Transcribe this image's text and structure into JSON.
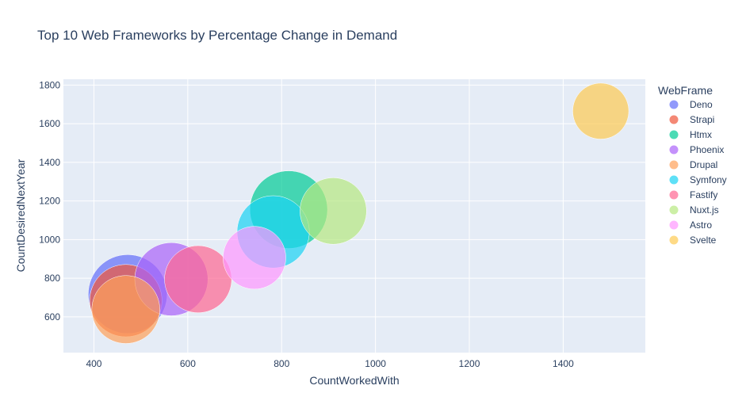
{
  "chart_data": {
    "type": "scatter",
    "title": "Top 10 Web Frameworks by Percentage Change in Demand",
    "xlabel": "CountWorkedWith",
    "ylabel": "CountDesiredNextYear",
    "xlim": [
      335,
      1575
    ],
    "ylim": [
      415,
      1830
    ],
    "x_ticks": [
      400,
      600,
      800,
      1000,
      1200,
      1400
    ],
    "y_ticks": [
      600,
      800,
      1000,
      1200,
      1400,
      1600,
      1800
    ],
    "grid": true,
    "legend_position": "right",
    "legend_title": "WebFrame",
    "plot_background": "#e5ecf6",
    "series": [
      {
        "name": "Deno",
        "x": 472,
        "y": 718,
        "size": 1.55,
        "color": "#636efa"
      },
      {
        "name": "Strapi",
        "x": 468,
        "y": 684,
        "size": 1.3,
        "color": "#EF553B"
      },
      {
        "name": "Htmx",
        "x": 815,
        "y": 1155,
        "size": 1.5,
        "color": "#00cc96"
      },
      {
        "name": "Phoenix",
        "x": 565,
        "y": 795,
        "size": 1.33,
        "color": "#ab63fa"
      },
      {
        "name": "Drupal",
        "x": 468,
        "y": 638,
        "size": 1.15,
        "color": "#FFA15A"
      },
      {
        "name": "Symfony",
        "x": 782,
        "y": 1040,
        "size": 1.3,
        "color": "#19d3f3"
      },
      {
        "name": "Fastify",
        "x": 622,
        "y": 795,
        "size": 1.12,
        "color": "#FF6692"
      },
      {
        "name": "Nuxt.js",
        "x": 910,
        "y": 1148,
        "size": 1.1,
        "color": "#B6E880"
      },
      {
        "name": "Astro",
        "x": 742,
        "y": 906,
        "size": 0.98,
        "color": "#FF97FF"
      },
      {
        "name": "Svelte",
        "x": 1480,
        "y": 1665,
        "size": 0.78,
        "color": "#FECB52"
      }
    ]
  }
}
